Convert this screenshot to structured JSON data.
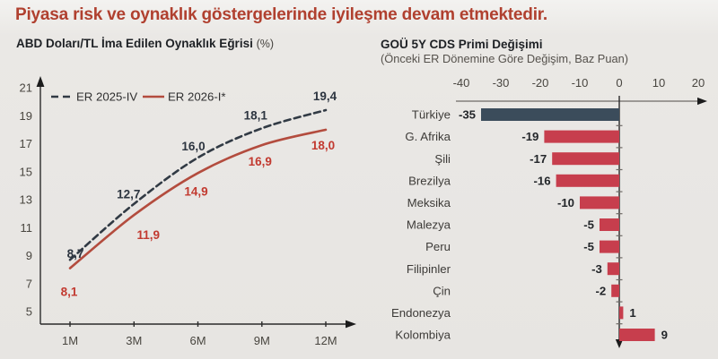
{
  "page": {
    "title": "Piyasa risk ve oynaklık göstergelerinde iyileşme devam etmektedir.",
    "colors": {
      "background": "#e8e6e3",
      "title": "#b0402f",
      "dark_text": "#1e2125",
      "muted_text": "#48453f"
    }
  },
  "chart_data": [
    {
      "type": "line",
      "title": "ABD Doları/TL İma Edilen Oynaklık Eğrisi",
      "title_unit": "(%)",
      "x": [
        "1M",
        "3M",
        "6M",
        "9M",
        "12M"
      ],
      "series": [
        {
          "name": "ER 2025-IV",
          "values": [
            8.7,
            12.7,
            16.0,
            18.1,
            19.4
          ],
          "labels": [
            "8,7",
            "12,7",
            "16,0",
            "18,1",
            "19,4"
          ],
          "style": "dashed",
          "color": "#313a44",
          "label_color": "#2d3540"
        },
        {
          "name": "ER 2026-I*",
          "values": [
            8.1,
            11.9,
            14.9,
            16.9,
            18.0
          ],
          "labels": [
            "8,1",
            "11,9",
            "14,9",
            "16,9",
            "18,0"
          ],
          "style": "solid",
          "color": "#b34c3e",
          "label_color": "#c23a30"
        }
      ],
      "ylim": [
        5,
        21
      ],
      "yticks": [
        21,
        19,
        17,
        15,
        13,
        11,
        9,
        7,
        5
      ],
      "legend_position": "top-left",
      "grid": false
    },
    {
      "type": "bar",
      "orientation": "horizontal",
      "title": "GOÜ 5Y CDS Primi Değişimi",
      "subtitle": "(Önceki ER Dönemine Göre Değişim, Baz Puan)",
      "categories": [
        "Türkiye",
        "G. Afrika",
        "Şili",
        "Brezilya",
        "Meksika",
        "Malezya",
        "Peru",
        "Filipinler",
        "Çin",
        "Endonezya",
        "Kolombiya"
      ],
      "values": [
        -35,
        -19,
        -17,
        -16,
        -10,
        -5,
        -5,
        -3,
        -2,
        1,
        9
      ],
      "value_labels": [
        "-35",
        "-19",
        "-17",
        "-16",
        "-10",
        "-5",
        "-5",
        "-3",
        "-2",
        "1",
        "9"
      ],
      "xticks": [
        -40,
        -30,
        -20,
        -10,
        0,
        10,
        20
      ],
      "xlim": [
        -42,
        22
      ],
      "grid": false,
      "colors": {
        "bar": "#c73e4d",
        "highlight_bar": "#3b4c5b",
        "highlight_category": "Türkiye"
      }
    }
  ]
}
